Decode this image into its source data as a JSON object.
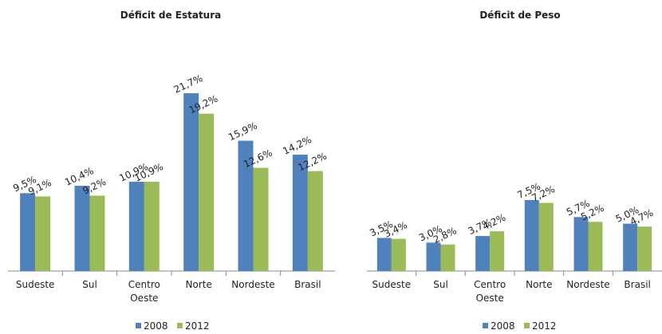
{
  "chart_data": [
    {
      "type": "bar",
      "title": "Déficit de Estatura",
      "categories": [
        "Sudeste",
        "Sul",
        "Centro Oeste",
        "Norte",
        "Nordeste",
        "Brasil"
      ],
      "series": [
        {
          "name": "2008",
          "color": "#4f81bd",
          "values": [
            9.5,
            10.4,
            10.9,
            21.7,
            15.9,
            14.2
          ],
          "value_labels": [
            "9,5%",
            "10,4%",
            "10,9%",
            "21,7%",
            "15,9%",
            "14,2%"
          ]
        },
        {
          "name": "2012",
          "color": "#9bbb59",
          "values": [
            9.1,
            9.2,
            10.9,
            19.2,
            12.6,
            12.2
          ],
          "value_labels": [
            "9,1%",
            "9,2%",
            "10,9%",
            "19,2%",
            "12,6%",
            "12,2%"
          ]
        }
      ],
      "ylim": [
        0,
        25
      ]
    },
    {
      "type": "bar",
      "title": "Déficit de Peso",
      "categories": [
        "Sudeste",
        "Sul",
        "Centro Oeste",
        "Norte",
        "Nordeste",
        "Brasil"
      ],
      "series": [
        {
          "name": "2008",
          "color": "#4f81bd",
          "values": [
            3.5,
            3.0,
            3.7,
            7.5,
            5.7,
            5.0
          ],
          "value_labels": [
            "3,5%",
            "3,0%",
            "3,7%",
            "7,5%",
            "5,7%",
            "5,0%"
          ]
        },
        {
          "name": "2012",
          "color": "#9bbb59",
          "values": [
            3.4,
            2.8,
            4.2,
            7.2,
            5.2,
            4.7
          ],
          "value_labels": [
            "3,4%",
            "2,8%",
            "4,2%",
            "7,2%",
            "5,2%",
            "4,7%"
          ]
        }
      ],
      "ylim": [
        0,
        8
      ]
    }
  ]
}
